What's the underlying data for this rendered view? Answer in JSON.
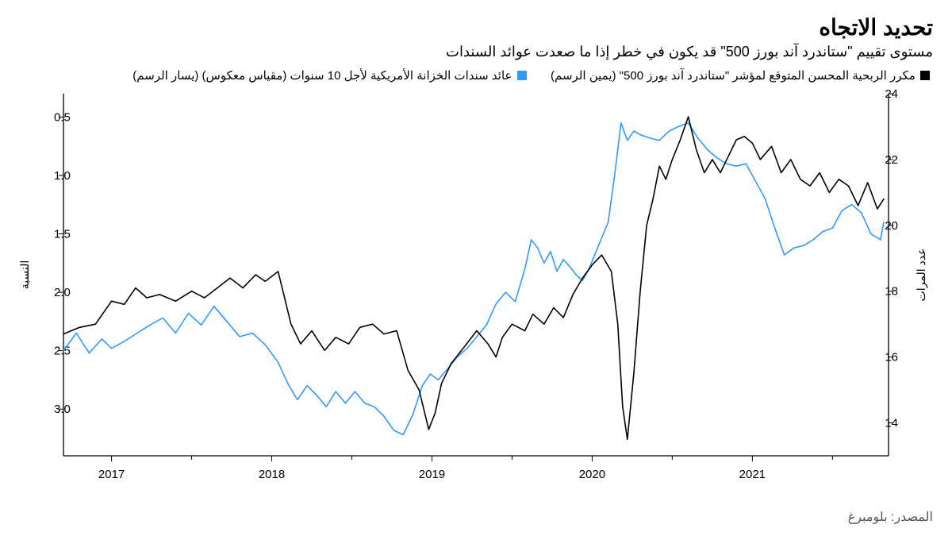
{
  "title": "تحديد الاتجاه",
  "subtitle": "مستوى تقييم \"ستاندرد آند بورز 500\" قد يكون في خطر إذا ما صعدت عوائد السندات",
  "legend": {
    "series1": {
      "swatch": "#000000",
      "label": "مكرر الربحية المحسن المتوقع لمؤشر \"ستاندرد آند بورز 500\" (يمين الرسم)"
    },
    "series2": {
      "swatch": "#3399ff",
      "label": "عائد سندات الخزانة الأمريكية لأجل 10 سنوات (مقياس معكوس) (يسار الرسم)"
    }
  },
  "source": "المصدر: بلومبرغ",
  "chart": {
    "type": "line",
    "background_color": "#ffffff",
    "axis_color": "#000000",
    "grid_color": "#d0d0d0",
    "tick_font_size": 15,
    "line_width": 1.6,
    "x": {
      "min": 2016.7,
      "max": 2021.85,
      "ticks": [
        2017,
        2018,
        2019,
        2020,
        2021
      ],
      "tick_labels": [
        "2017",
        "2018",
        "2019",
        "2020",
        "2021"
      ]
    },
    "y_right": {
      "label": "عدد المرات",
      "min": 13,
      "max": 24,
      "ticks": [
        14,
        16,
        18,
        20,
        22,
        24
      ],
      "tick_labels": [
        "14",
        "16",
        "18",
        "20",
        "22",
        "24"
      ]
    },
    "y_left": {
      "label": "النسبة",
      "min": 3.4,
      "max": 0.3,
      "ticks": [
        0.5,
        1.0,
        1.5,
        2.0,
        2.5,
        3.0
      ],
      "tick_labels": [
        "0.5",
        "1.0",
        "1.5",
        "2.0",
        "2.5",
        "3.0"
      ]
    },
    "series_black": {
      "color": "#000000",
      "axis": "right",
      "data": [
        [
          2016.7,
          16.7
        ],
        [
          2016.8,
          16.9
        ],
        [
          2016.9,
          17.0
        ],
        [
          2017.0,
          17.7
        ],
        [
          2017.08,
          17.6
        ],
        [
          2017.15,
          18.1
        ],
        [
          2017.22,
          17.8
        ],
        [
          2017.3,
          17.9
        ],
        [
          2017.4,
          17.7
        ],
        [
          2017.5,
          18.0
        ],
        [
          2017.58,
          17.8
        ],
        [
          2017.66,
          18.1
        ],
        [
          2017.74,
          18.4
        ],
        [
          2017.82,
          18.1
        ],
        [
          2017.9,
          18.5
        ],
        [
          2017.96,
          18.3
        ],
        [
          2018.04,
          18.6
        ],
        [
          2018.12,
          17.0
        ],
        [
          2018.18,
          16.4
        ],
        [
          2018.25,
          16.8
        ],
        [
          2018.33,
          16.2
        ],
        [
          2018.4,
          16.6
        ],
        [
          2018.48,
          16.4
        ],
        [
          2018.55,
          16.9
        ],
        [
          2018.63,
          17.0
        ],
        [
          2018.7,
          16.7
        ],
        [
          2018.78,
          16.8
        ],
        [
          2018.85,
          15.6
        ],
        [
          2018.92,
          15.0
        ],
        [
          2018.98,
          13.8
        ],
        [
          2019.02,
          14.3
        ],
        [
          2019.06,
          15.2
        ],
        [
          2019.12,
          15.8
        ],
        [
          2019.2,
          16.3
        ],
        [
          2019.28,
          16.8
        ],
        [
          2019.35,
          16.4
        ],
        [
          2019.4,
          16.0
        ],
        [
          2019.44,
          16.6
        ],
        [
          2019.5,
          17.0
        ],
        [
          2019.58,
          16.8
        ],
        [
          2019.63,
          17.3
        ],
        [
          2019.7,
          17.0
        ],
        [
          2019.76,
          17.5
        ],
        [
          2019.82,
          17.2
        ],
        [
          2019.88,
          17.9
        ],
        [
          2019.94,
          18.4
        ],
        [
          2020.0,
          18.8
        ],
        [
          2020.06,
          19.1
        ],
        [
          2020.12,
          18.6
        ],
        [
          2020.16,
          17.0
        ],
        [
          2020.19,
          14.5
        ],
        [
          2020.22,
          13.5
        ],
        [
          2020.26,
          15.5
        ],
        [
          2020.3,
          18.0
        ],
        [
          2020.34,
          20.0
        ],
        [
          2020.38,
          20.8
        ],
        [
          2020.42,
          21.8
        ],
        [
          2020.46,
          21.4
        ],
        [
          2020.5,
          22.0
        ],
        [
          2020.55,
          22.6
        ],
        [
          2020.6,
          23.3
        ],
        [
          2020.65,
          22.3
        ],
        [
          2020.7,
          21.6
        ],
        [
          2020.75,
          22.0
        ],
        [
          2020.8,
          21.6
        ],
        [
          2020.85,
          22.1
        ],
        [
          2020.9,
          22.6
        ],
        [
          2020.95,
          22.7
        ],
        [
          2021.0,
          22.5
        ],
        [
          2021.05,
          22.0
        ],
        [
          2021.12,
          22.4
        ],
        [
          2021.18,
          21.6
        ],
        [
          2021.24,
          22.0
        ],
        [
          2021.3,
          21.4
        ],
        [
          2021.36,
          21.2
        ],
        [
          2021.42,
          21.6
        ],
        [
          2021.48,
          21.0
        ],
        [
          2021.54,
          21.4
        ],
        [
          2021.6,
          21.2
        ],
        [
          2021.66,
          20.6
        ],
        [
          2021.72,
          21.3
        ],
        [
          2021.78,
          20.5
        ],
        [
          2021.82,
          20.8
        ]
      ]
    },
    "series_blue": {
      "color": "#3399ff",
      "axis": "left",
      "data": [
        [
          2016.7,
          2.5
        ],
        [
          2016.78,
          2.35
        ],
        [
          2016.86,
          2.52
        ],
        [
          2016.94,
          2.4
        ],
        [
          2017.0,
          2.48
        ],
        [
          2017.08,
          2.42
        ],
        [
          2017.16,
          2.35
        ],
        [
          2017.24,
          2.28
        ],
        [
          2017.32,
          2.22
        ],
        [
          2017.4,
          2.35
        ],
        [
          2017.48,
          2.18
        ],
        [
          2017.56,
          2.28
        ],
        [
          2017.64,
          2.12
        ],
        [
          2017.72,
          2.25
        ],
        [
          2017.8,
          2.38
        ],
        [
          2017.88,
          2.35
        ],
        [
          2017.96,
          2.45
        ],
        [
          2018.04,
          2.6
        ],
        [
          2018.1,
          2.78
        ],
        [
          2018.16,
          2.92
        ],
        [
          2018.22,
          2.8
        ],
        [
          2018.28,
          2.88
        ],
        [
          2018.34,
          2.98
        ],
        [
          2018.4,
          2.85
        ],
        [
          2018.46,
          2.95
        ],
        [
          2018.52,
          2.85
        ],
        [
          2018.58,
          2.95
        ],
        [
          2018.64,
          2.98
        ],
        [
          2018.7,
          3.06
        ],
        [
          2018.76,
          3.18
        ],
        [
          2018.82,
          3.22
        ],
        [
          2018.88,
          3.05
        ],
        [
          2018.94,
          2.8
        ],
        [
          2018.99,
          2.7
        ],
        [
          2019.04,
          2.75
        ],
        [
          2019.1,
          2.65
        ],
        [
          2019.16,
          2.55
        ],
        [
          2019.22,
          2.48
        ],
        [
          2019.28,
          2.38
        ],
        [
          2019.34,
          2.28
        ],
        [
          2019.4,
          2.1
        ],
        [
          2019.46,
          2.0
        ],
        [
          2019.52,
          2.08
        ],
        [
          2019.58,
          1.8
        ],
        [
          2019.62,
          1.55
        ],
        [
          2019.66,
          1.62
        ],
        [
          2019.7,
          1.75
        ],
        [
          2019.74,
          1.65
        ],
        [
          2019.78,
          1.82
        ],
        [
          2019.82,
          1.72
        ],
        [
          2019.86,
          1.78
        ],
        [
          2019.9,
          1.85
        ],
        [
          2019.94,
          1.9
        ],
        [
          2019.98,
          1.8
        ],
        [
          2020.04,
          1.6
        ],
        [
          2020.1,
          1.4
        ],
        [
          2020.14,
          1.0
        ],
        [
          2020.18,
          0.55
        ],
        [
          2020.22,
          0.7
        ],
        [
          2020.26,
          0.62
        ],
        [
          2020.3,
          0.65
        ],
        [
          2020.36,
          0.68
        ],
        [
          2020.42,
          0.7
        ],
        [
          2020.48,
          0.62
        ],
        [
          2020.54,
          0.58
        ],
        [
          2020.6,
          0.55
        ],
        [
          2020.66,
          0.68
        ],
        [
          2020.72,
          0.78
        ],
        [
          2020.78,
          0.85
        ],
        [
          2020.84,
          0.9
        ],
        [
          2020.9,
          0.92
        ],
        [
          2020.96,
          0.9
        ],
        [
          2021.02,
          1.05
        ],
        [
          2021.08,
          1.2
        ],
        [
          2021.14,
          1.45
        ],
        [
          2021.2,
          1.68
        ],
        [
          2021.26,
          1.62
        ],
        [
          2021.32,
          1.6
        ],
        [
          2021.38,
          1.55
        ],
        [
          2021.44,
          1.48
        ],
        [
          2021.5,
          1.45
        ],
        [
          2021.56,
          1.3
        ],
        [
          2021.62,
          1.25
        ],
        [
          2021.68,
          1.32
        ],
        [
          2021.74,
          1.5
        ],
        [
          2021.8,
          1.55
        ],
        [
          2021.82,
          1.4
        ]
      ]
    }
  }
}
